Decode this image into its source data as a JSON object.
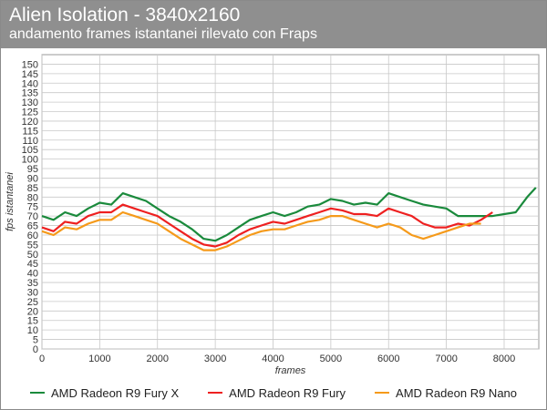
{
  "header": {
    "title": "Alien Isolation - 3840x2160",
    "subtitle": "andamento frames istantanei rilevato con Fraps"
  },
  "colors": {
    "header_bg": "#8f8f8f",
    "grid": "#c8c8c8",
    "series": [
      "#1a8a3c",
      "#ee2020",
      "#f59a1a"
    ]
  },
  "chart_data": {
    "type": "line",
    "title": "Alien Isolation - 3840x2160",
    "subtitle": "andamento frames istantanei rilevato con Fraps",
    "xlabel": "frames",
    "ylabel": "fps istantanei",
    "xlim": [
      0,
      8600
    ],
    "ylim": [
      0,
      155
    ],
    "xticks": [
      0,
      1000,
      2000,
      3000,
      4000,
      5000,
      6000,
      7000,
      8000
    ],
    "yticks": [
      0,
      5,
      10,
      15,
      20,
      25,
      30,
      35,
      40,
      45,
      50,
      55,
      60,
      65,
      70,
      75,
      80,
      85,
      90,
      95,
      100,
      105,
      110,
      115,
      120,
      125,
      130,
      135,
      140,
      145,
      150
    ],
    "grid": true,
    "legend_position": "bottom",
    "series": [
      {
        "name": "AMD Radeon R9 Fury X",
        "x": [
          0,
          200,
          400,
          600,
          800,
          1000,
          1200,
          1400,
          1600,
          1800,
          2000,
          2200,
          2400,
          2600,
          2800,
          3000,
          3200,
          3400,
          3600,
          3800,
          4000,
          4200,
          4400,
          4600,
          4800,
          5000,
          5200,
          5400,
          5600,
          5800,
          6000,
          6200,
          6400,
          6600,
          6800,
          7000,
          7200,
          7400,
          7600,
          7800,
          8000,
          8200,
          8400,
          8550
        ],
        "y": [
          70,
          68,
          72,
          70,
          74,
          77,
          76,
          82,
          80,
          78,
          74,
          70,
          67,
          63,
          58,
          57,
          60,
          64,
          68,
          70,
          72,
          70,
          72,
          75,
          76,
          79,
          78,
          76,
          77,
          76,
          82,
          80,
          78,
          76,
          75,
          74,
          70,
          70,
          70,
          70,
          71,
          72,
          80,
          85
        ]
      },
      {
        "name": "AMD Radeon R9 Fury",
        "x": [
          0,
          200,
          400,
          600,
          800,
          1000,
          1200,
          1400,
          1600,
          1800,
          2000,
          2200,
          2400,
          2600,
          2800,
          3000,
          3200,
          3400,
          3600,
          3800,
          4000,
          4200,
          4400,
          4600,
          4800,
          5000,
          5200,
          5400,
          5600,
          5800,
          6000,
          6200,
          6400,
          6600,
          6800,
          7000,
          7200,
          7400,
          7600,
          7800
        ],
        "y": [
          64,
          62,
          67,
          66,
          70,
          72,
          72,
          76,
          74,
          72,
          70,
          66,
          62,
          58,
          55,
          54,
          56,
          60,
          63,
          65,
          67,
          66,
          68,
          70,
          72,
          74,
          73,
          71,
          71,
          70,
          74,
          72,
          70,
          66,
          64,
          64,
          66,
          65,
          68,
          72
        ]
      },
      {
        "name": "AMD Radeon R9 Nano",
        "x": [
          0,
          200,
          400,
          600,
          800,
          1000,
          1200,
          1400,
          1600,
          1800,
          2000,
          2200,
          2400,
          2600,
          2800,
          3000,
          3200,
          3400,
          3600,
          3800,
          4000,
          4200,
          4400,
          4600,
          4800,
          5000,
          5200,
          5400,
          5600,
          5800,
          6000,
          6200,
          6400,
          6600,
          6800,
          7000,
          7200,
          7400,
          7600
        ],
        "y": [
          62,
          60,
          64,
          63,
          66,
          68,
          68,
          72,
          70,
          68,
          66,
          62,
          58,
          55,
          52,
          52,
          54,
          57,
          60,
          62,
          63,
          63,
          65,
          67,
          68,
          70,
          70,
          68,
          66,
          64,
          66,
          64,
          60,
          58,
          60,
          62,
          64,
          66,
          66
        ]
      }
    ]
  }
}
